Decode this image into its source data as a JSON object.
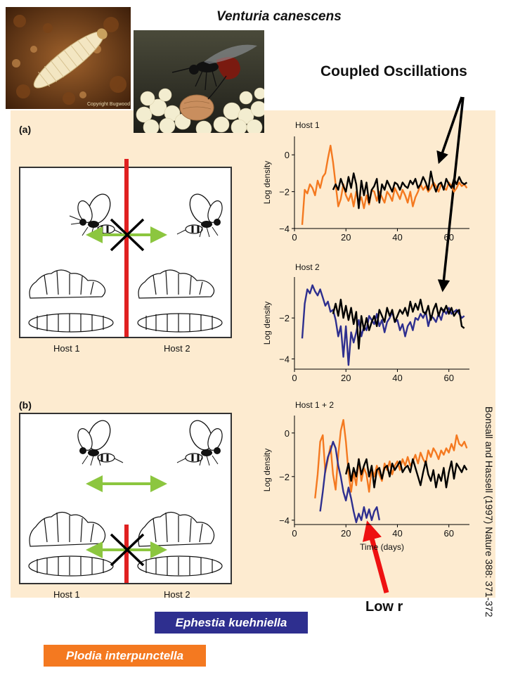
{
  "species_title": "Venturia canescens",
  "callout_coupled": "Coupled Oscillations",
  "callout_low_r": "Low r",
  "citation": "Bonsall and Hassell (1997) Nature 388: 371-372",
  "photo_credit": "Copyright Bugwood",
  "panel_a_label": "(a)",
  "panel_b_label": "(b)",
  "host1_label": "Host 1",
  "host2_label": "Host 2",
  "legend": {
    "blue_label": "Ephestia kuehniella",
    "blue_color": "#2e2f8f",
    "orange_label": "Plodia interpunctella",
    "orange_color": "#f47920"
  },
  "colors": {
    "background": "#fdebd0",
    "barrier": "#e02020",
    "arrow_green": "#8cc63f",
    "parasitoid": "#000000",
    "callout_red": "#ee1111"
  },
  "chart_data": [
    {
      "type": "line",
      "title": "Host 1",
      "ylabel": "Log density",
      "xlabel": "",
      "xlim": [
        0,
        68
      ],
      "ylim": [
        -4,
        1
      ],
      "xticks": [
        0,
        20,
        40,
        60
      ],
      "yticks": [
        0,
        -2,
        -4
      ],
      "series": [
        {
          "color": "#f47920",
          "x": [
            3,
            4,
            5,
            6,
            7,
            8,
            9,
            10,
            11,
            12,
            13,
            14,
            15,
            16,
            17,
            18,
            19,
            20,
            21,
            22,
            23,
            24,
            25,
            26,
            27,
            28,
            29,
            30,
            31,
            32,
            33,
            34,
            35,
            36,
            37,
            38,
            39,
            40,
            41,
            42,
            43,
            44,
            45,
            46,
            47,
            48,
            49,
            50,
            51,
            52,
            53,
            54,
            55,
            56,
            57,
            58,
            59,
            60,
            61,
            62,
            63,
            64,
            65,
            66,
            67
          ],
          "y": [
            -3.8,
            -1.9,
            -2.1,
            -1.6,
            -1.8,
            -2.2,
            -1.4,
            -1.8,
            -1.2,
            -1.0,
            -0.2,
            0.5,
            -0.4,
            -1.6,
            -2.8,
            -2.4,
            -1.6,
            -2.2,
            -2.5,
            -2.1,
            -2.8,
            -2.0,
            -2.6,
            -2.3,
            -2.9,
            -2.2,
            -2.7,
            -1.9,
            -2.0,
            -2.5,
            -2.0,
            -2.3,
            -2.6,
            -2.0,
            -2.2,
            -2.5,
            -1.8,
            -2.1,
            -2.4,
            -1.9,
            -2.2,
            -2.6,
            -2.0,
            -2.8,
            -2.3,
            -2.0,
            -1.6,
            -1.9,
            -1.7,
            -2.0,
            -1.8,
            -1.5,
            -1.7,
            -2.0,
            -1.6,
            -1.8,
            -1.9,
            -1.5,
            -1.7,
            -2.0,
            -1.8,
            -1.5,
            -1.7,
            -1.6,
            -1.8
          ]
        },
        {
          "color": "#000000",
          "x": [
            15,
            16,
            17,
            18,
            19,
            20,
            21,
            22,
            23,
            24,
            25,
            26,
            27,
            28,
            29,
            30,
            31,
            32,
            33,
            34,
            35,
            36,
            37,
            38,
            39,
            40,
            41,
            42,
            43,
            44,
            45,
            46,
            47,
            48,
            49,
            50,
            51,
            52,
            53,
            54,
            55,
            56,
            57,
            58,
            59,
            60,
            61,
            62,
            63,
            64,
            65,
            66,
            67
          ],
          "y": [
            -1.9,
            -1.6,
            -1.9,
            -1.3,
            -1.7,
            -2.0,
            -1.2,
            -1.8,
            -1.0,
            -1.6,
            -2.9,
            -1.4,
            -2.2,
            -1.5,
            -2.6,
            -1.9,
            -1.7,
            -1.3,
            -2.6,
            -1.6,
            -1.9,
            -1.4,
            -1.7,
            -2.0,
            -1.5,
            -1.6,
            -1.9,
            -1.5,
            -1.7,
            -1.8,
            -1.4,
            -1.6,
            -1.3,
            -1.8,
            -1.6,
            -1.2,
            -1.5,
            -1.9,
            -0.9,
            -1.6,
            -2.0,
            -1.6,
            -1.5,
            -1.9,
            -1.3,
            -1.6,
            -1.8,
            -1.3,
            -1.6,
            -1.2,
            -1.5,
            -1.6,
            -1.5
          ]
        }
      ]
    },
    {
      "type": "line",
      "title": "Host 2",
      "ylabel": "Log density",
      "xlabel": "",
      "xlim": [
        0,
        68
      ],
      "ylim": [
        -4.5,
        0
      ],
      "xticks": [
        0,
        20,
        40,
        60
      ],
      "yticks": [
        -2,
        -4
      ],
      "series": [
        {
          "color": "#2e2f8f",
          "x": [
            3,
            4,
            5,
            6,
            7,
            8,
            9,
            10,
            11,
            12,
            13,
            14,
            15,
            16,
            17,
            18,
            19,
            20,
            21,
            22,
            23,
            24,
            25,
            26,
            27,
            28,
            29,
            30,
            31,
            32,
            33,
            34,
            35,
            36,
            37,
            38,
            39,
            40,
            41,
            42,
            43,
            44,
            45,
            46,
            47,
            48,
            49,
            50,
            51,
            52,
            53,
            54,
            55,
            56,
            57,
            58,
            59,
            60,
            61,
            62,
            63,
            64,
            65,
            66
          ],
          "y": [
            -3.0,
            -1.3,
            -0.6,
            -0.8,
            -0.4,
            -0.7,
            -0.9,
            -0.6,
            -1.0,
            -1.4,
            -1.2,
            -1.7,
            -1.6,
            -2.1,
            -2.9,
            -2.4,
            -3.9,
            -2.4,
            -4.3,
            -2.7,
            -3.2,
            -2.7,
            -2.1,
            -2.9,
            -2.4,
            -2.6,
            -1.9,
            -2.1,
            -2.3,
            -1.8,
            -2.4,
            -2.1,
            -2.7,
            -2.2,
            -2.0,
            -1.7,
            -2.2,
            -2.1,
            -2.6,
            -2.3,
            -2.9,
            -2.4,
            -2.2,
            -2.6,
            -2.0,
            -2.1,
            -1.8,
            -2.0,
            -1.7,
            -2.4,
            -1.9,
            -2.0,
            -2.2,
            -1.8,
            -2.1,
            -1.6,
            -1.8,
            -1.5,
            -1.8,
            -1.7,
            -1.6,
            -1.8,
            -2.0,
            -1.9
          ]
        },
        {
          "color": "#000000",
          "x": [
            15,
            16,
            17,
            18,
            19,
            20,
            21,
            22,
            23,
            24,
            25,
            26,
            27,
            28,
            29,
            30,
            31,
            32,
            33,
            34,
            35,
            36,
            37,
            38,
            39,
            40,
            41,
            42,
            43,
            44,
            45,
            46,
            47,
            48,
            49,
            50,
            51,
            52,
            53,
            54,
            55,
            56,
            57,
            58,
            59,
            60,
            61,
            62,
            63,
            64,
            65,
            66
          ],
          "y": [
            -1.8,
            -1.3,
            -1.9,
            -1.1,
            -2.0,
            -1.4,
            -2.1,
            -1.5,
            -2.3,
            -1.7,
            -3.5,
            -1.9,
            -2.6,
            -2.0,
            -2.6,
            -2.2,
            -1.9,
            -2.4,
            -1.6,
            -1.9,
            -2.2,
            -1.5,
            -1.9,
            -1.6,
            -2.2,
            -1.9,
            -1.6,
            -1.8,
            -1.5,
            -1.9,
            -1.2,
            -1.7,
            -1.3,
            -1.6,
            -1.1,
            -1.7,
            -1.8,
            -1.4,
            -2.1,
            -1.6,
            -1.3,
            -1.9,
            -1.5,
            -1.7,
            -1.4,
            -1.8,
            -1.5,
            -1.9,
            -1.7,
            -1.6,
            -2.4,
            -2.5
          ]
        }
      ]
    },
    {
      "type": "line",
      "title": "Host 1 + 2",
      "ylabel": "Log density",
      "xlabel": "Time (days)",
      "xlim": [
        0,
        68
      ],
      "ylim": [
        -4.2,
        0.8
      ],
      "xticks": [
        0,
        20,
        40,
        60
      ],
      "yticks": [
        0,
        -2,
        -4
      ],
      "series": [
        {
          "color": "#f47920",
          "x": [
            8,
            9,
            10,
            11,
            12,
            13,
            14,
            15,
            16,
            17,
            18,
            19,
            20,
            21,
            22,
            23,
            24,
            25,
            26,
            27,
            28,
            29,
            30,
            31,
            32,
            33,
            34,
            35,
            36,
            37,
            38,
            39,
            40,
            41,
            42,
            43,
            44,
            45,
            46,
            47,
            48,
            49,
            50,
            51,
            52,
            53,
            54,
            55,
            56,
            57,
            58,
            59,
            60,
            61,
            62,
            63,
            64,
            65,
            66,
            67
          ],
          "y": [
            -3.0,
            -1.9,
            -0.4,
            -0.1,
            -1.8,
            -1.2,
            -0.6,
            -1.9,
            -2.6,
            -1.0,
            0.1,
            0.6,
            -0.4,
            -1.8,
            -2.7,
            -1.8,
            -2.4,
            -1.2,
            -2.2,
            -1.6,
            -1.9,
            -2.7,
            -1.6,
            -2.0,
            -1.5,
            -1.9,
            -2.2,
            -1.4,
            -1.7,
            -1.3,
            -1.9,
            -1.5,
            -1.3,
            -1.7,
            -1.2,
            -1.5,
            -1.1,
            -1.5,
            -1.3,
            -1.0,
            -1.4,
            -0.9,
            -1.2,
            -1.4,
            -0.8,
            -1.1,
            -0.7,
            -0.9,
            -1.2,
            -0.8,
            -1.0,
            -0.7,
            -0.9,
            -0.5,
            -0.8,
            -0.1,
            -0.5,
            -0.6,
            -0.4,
            -0.7
          ]
        },
        {
          "color": "#2e2f8f",
          "x": [
            10,
            11,
            12,
            13,
            14,
            15,
            16,
            17,
            18,
            19,
            20,
            21,
            22,
            23,
            24,
            25,
            26,
            27,
            28,
            29,
            30,
            31,
            32,
            33
          ],
          "y": [
            -3.6,
            -2.7,
            -1.7,
            -1.1,
            -0.8,
            -0.4,
            -0.7,
            -1.5,
            -2.0,
            -2.7,
            -3.1,
            -2.5,
            -3.0,
            -3.6,
            -4.1,
            -3.7,
            -4.0,
            -3.4,
            -3.9,
            -3.5,
            -4.0,
            -3.6,
            -3.4,
            -4.0
          ]
        },
        {
          "color": "#000000",
          "x": [
            20,
            21,
            22,
            23,
            24,
            25,
            26,
            27,
            28,
            29,
            30,
            31,
            32,
            33,
            34,
            35,
            36,
            37,
            38,
            39,
            40,
            41,
            42,
            43,
            44,
            45,
            46,
            47,
            48,
            49,
            50,
            51,
            52,
            53,
            54,
            55,
            56,
            57,
            58,
            59,
            60,
            61,
            62,
            63,
            64,
            65,
            66,
            67
          ],
          "y": [
            -1.9,
            -1.4,
            -2.2,
            -1.6,
            -2.0,
            -1.2,
            -1.9,
            -1.5,
            -1.2,
            -2.0,
            -1.5,
            -2.5,
            -1.7,
            -1.6,
            -2.1,
            -1.6,
            -1.5,
            -2.0,
            -1.4,
            -1.7,
            -1.5,
            -1.3,
            -1.8,
            -1.6,
            -1.5,
            -1.8,
            -1.2,
            -1.6,
            -2.0,
            -2.4,
            -1.8,
            -1.3,
            -1.9,
            -2.2,
            -1.7,
            -2.5,
            -1.9,
            -2.2,
            -1.6,
            -2.5,
            -1.8,
            -1.3,
            -2.1,
            -1.4,
            -1.6,
            -1.8,
            -1.5,
            -1.7
          ]
        }
      ]
    }
  ]
}
